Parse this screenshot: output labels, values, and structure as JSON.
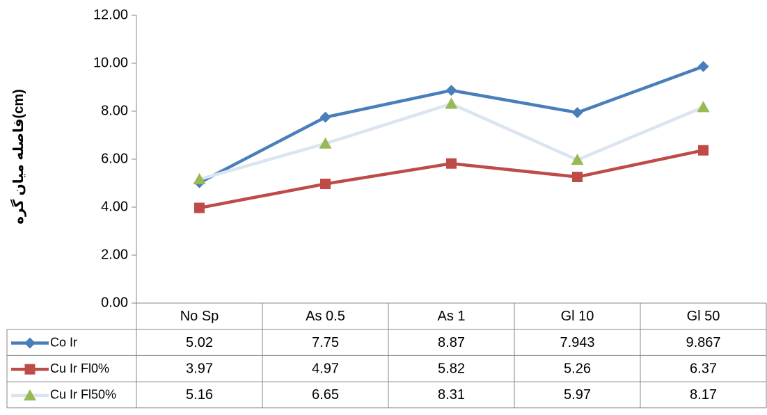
{
  "chart_data": {
    "type": "line",
    "title": "",
    "xlabel": "",
    "ylabel": "فاصله میان گره(cm)",
    "ylim": [
      0,
      12
    ],
    "yticks": [
      "0.00",
      "2.00",
      "4.00",
      "6.00",
      "8.00",
      "10.00",
      "12.00"
    ],
    "categories": [
      "No Sp",
      "As 0.5",
      "As 1",
      "Gl 10",
      "Gl 50"
    ],
    "grid": false,
    "legend": "data-table",
    "series": [
      {
        "name": "Co Ir",
        "values": [
          5.02,
          7.75,
          8.87,
          7.943,
          9.867
        ],
        "labels": [
          "5.02",
          "7.75",
          "8.87",
          "7.943",
          "9.867"
        ],
        "color": "#4a7ebb",
        "marker": "diamond"
      },
      {
        "name": "Cu Ir Fl0%",
        "values": [
          3.97,
          4.97,
          5.82,
          5.26,
          6.37
        ],
        "labels": [
          "3.97",
          "4.97",
          "5.82",
          "5.26",
          "6.37"
        ],
        "color": "#be4b48",
        "marker": "square"
      },
      {
        "name": "Cu Ir Fl50%",
        "values": [
          5.16,
          6.65,
          8.31,
          5.97,
          8.17
        ],
        "labels": [
          "5.16",
          "6.65",
          "8.31",
          "5.97",
          "8.17"
        ],
        "color": "#dbe5f1",
        "markerColor": "#98b954",
        "marker": "triangle"
      }
    ]
  }
}
